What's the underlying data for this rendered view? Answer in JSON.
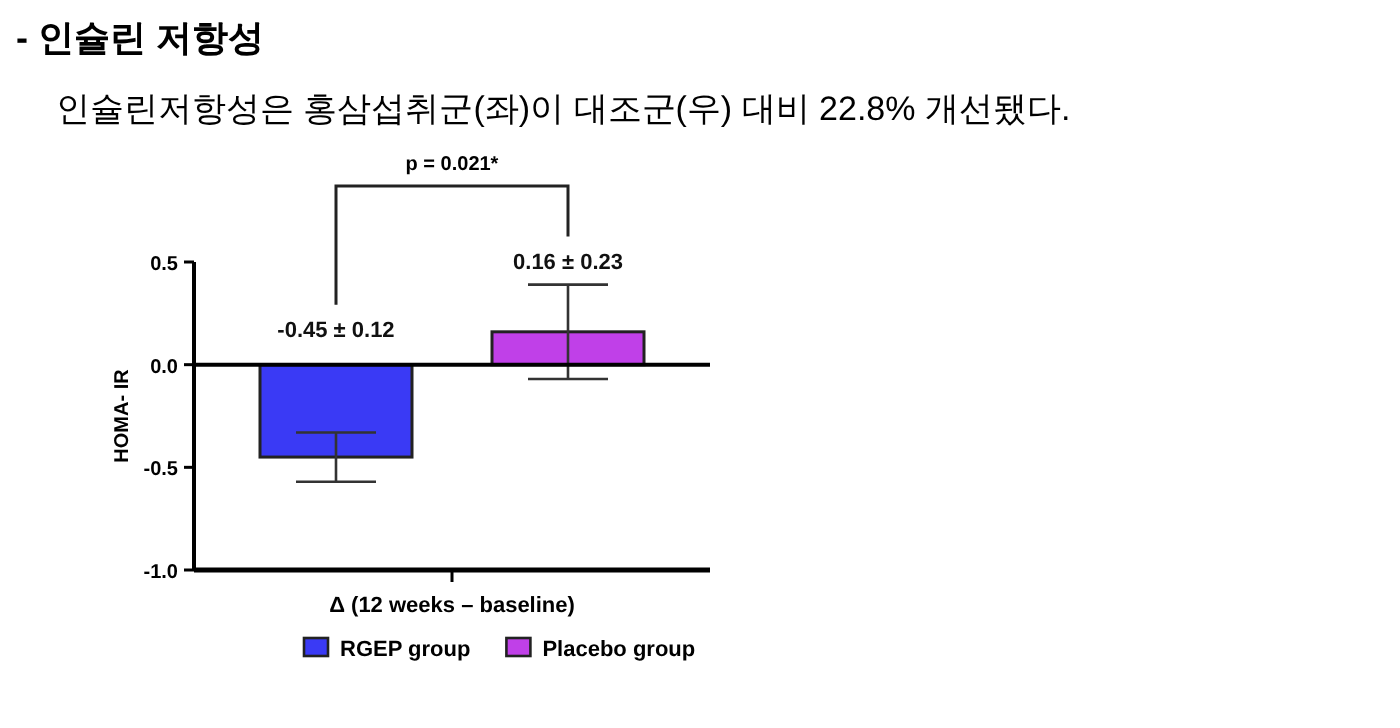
{
  "chart_data": {
    "type": "bar",
    "title": "- 인슐린 저항성",
    "subtitle": "인슐린저항성은 홍삼섭취군(좌)이 대조군(우) 대비 22.8% 개선됐다.",
    "ylabel": "HOMA- IR",
    "categories": [
      "Δ (12 weeks – baseline)"
    ],
    "series": [
      {
        "name": "RGEP group",
        "color": "#3a3af5",
        "values": [
          -0.45
        ],
        "errors": [
          0.12
        ],
        "value_labels": [
          "-0.45 ± 0.12"
        ]
      },
      {
        "name": "Placebo group",
        "color": "#c040e8",
        "values": [
          0.16
        ],
        "errors": [
          0.23
        ],
        "value_labels": [
          "0.16 ± 0.23"
        ]
      }
    ],
    "ylim": [
      -1.0,
      0.5
    ],
    "yticks": [
      {
        "value": -1,
        "label": "-1.0"
      },
      {
        "value": -0.5,
        "label": "-0.5"
      },
      {
        "value": 0,
        "label": "0.0"
      },
      {
        "value": 0.5,
        "label": "0.5"
      }
    ],
    "annotations": [
      "p = 0.021*"
    ],
    "legend": "bottom"
  }
}
